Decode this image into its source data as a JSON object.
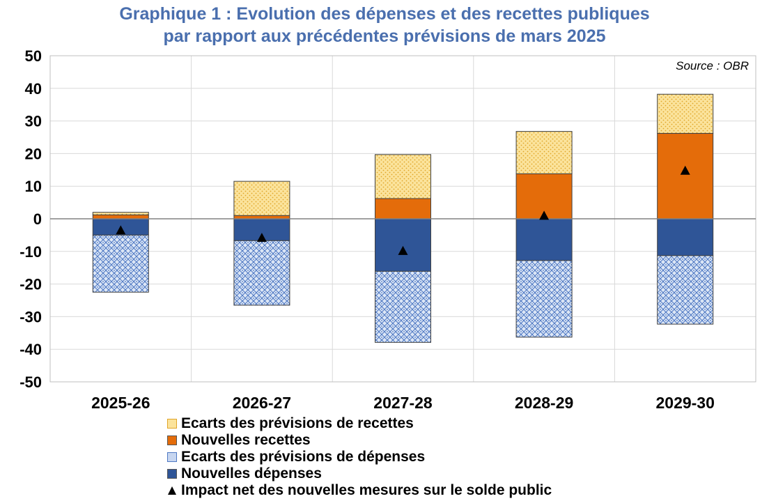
{
  "chart_data": {
    "type": "bar",
    "stacked": true,
    "title": "Graphique 1 : Evolution des dépenses et des recettes publiques",
    "subtitle": "par rapport aux précédentes prévisions de mars 2025",
    "source": "Source : OBR",
    "categories": [
      "2025-26",
      "2026-27",
      "2027-28",
      "2028-29",
      "2029-30"
    ],
    "ylim": [
      -50,
      50
    ],
    "yticks": [
      50,
      40,
      30,
      20,
      10,
      0,
      -10,
      -20,
      -30,
      -40,
      -50
    ],
    "grid": true,
    "legend_placement": "bottom",
    "series": [
      {
        "name": "Ecarts des prévisions de recettes",
        "color": "#f9dc8e",
        "pattern": "dotted",
        "values": [
          0.8,
          10.5,
          13.5,
          13.0,
          12.0
        ]
      },
      {
        "name": "Nouvelles recettes",
        "color": "#e46c0a",
        "values": [
          1.2,
          1.0,
          6.2,
          13.8,
          26.2
        ]
      },
      {
        "name": "Ecarts des prévisions de dépenses",
        "color": "#9db5e0",
        "pattern": "checkered",
        "values": [
          -17.5,
          -19.8,
          -21.8,
          -23.5,
          -21.0
        ]
      },
      {
        "name": "Nouvelles dépenses",
        "color": "#2f5597",
        "values": [
          -5.0,
          -6.7,
          -16.1,
          -12.8,
          -11.3
        ]
      },
      {
        "name": "Impact net des nouvelles mesures sur le solde public",
        "marker": "triangle",
        "color": "#000000",
        "values": [
          -3.5,
          -5.8,
          -9.8,
          1.0,
          14.8
        ]
      }
    ]
  }
}
